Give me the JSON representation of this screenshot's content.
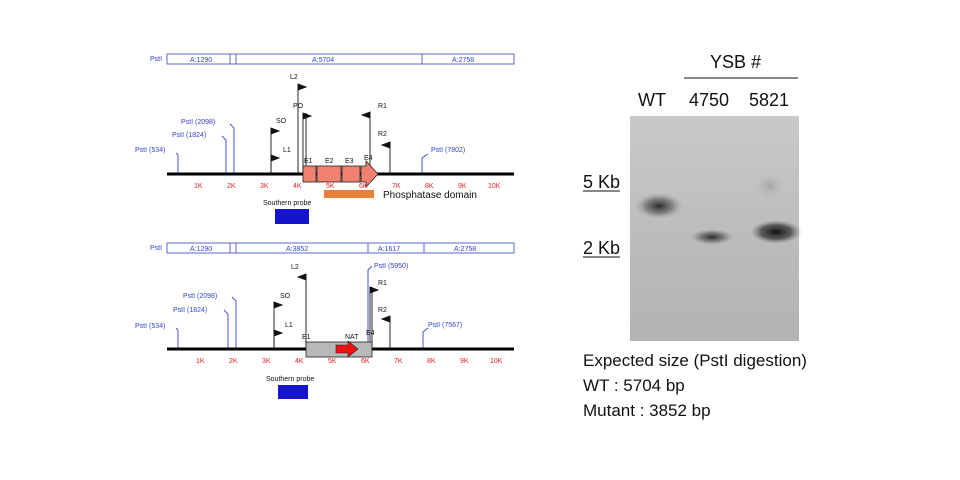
{
  "maps": [
    {
      "segments_prefix": "PstI",
      "segments": [
        "A:1290",
        "A:5704",
        "A:2758"
      ],
      "pst_sites": [
        "PstI (534)",
        "PstI (1824)",
        "PstI (2098)",
        "PstI (7802)"
      ],
      "primers": [
        "L2",
        "PO",
        "SO",
        "L1",
        "R1",
        "R2"
      ],
      "exons": [
        "E1",
        "E2",
        "E3",
        "E4"
      ],
      "ticks": [
        "1K",
        "2K",
        "3K",
        "4K",
        "5K",
        "6K",
        "7K",
        "8K",
        "9K",
        "10K"
      ],
      "domain_label": "Phosphatase domain",
      "probe_label": "Southern probe"
    },
    {
      "segments_prefix": "PstI",
      "segments": [
        "A:1290",
        "A:3852",
        "A:1617",
        "A:2758"
      ],
      "pst_sites": [
        "PstI (534)",
        "PstI (1824)",
        "PstI (2098)",
        "PstI (5950)",
        "PstI (7567)"
      ],
      "primers": [
        "L2",
        "SO",
        "L1",
        "R1",
        "R2"
      ],
      "exons": [
        "E1",
        "E4"
      ],
      "cassette": "NAT",
      "ticks": [
        "1K",
        "2K",
        "3K",
        "4K",
        "5K",
        "6K",
        "7K",
        "8K",
        "9K",
        "10K"
      ],
      "probe_label": "Southern probe"
    }
  ],
  "gel": {
    "group_label": "YSB #",
    "lanes": [
      "WT",
      "4750",
      "5821"
    ],
    "markers": [
      "5 Kb",
      "2 Kb"
    ]
  },
  "expected": {
    "title": "Expected size (PstI digestion)",
    "wt": "WT : 5704 bp",
    "mutant": "Mutant : 3852 bp"
  },
  "colors": {
    "exon": "#f08070",
    "domain": "#e8803a",
    "probe": "#1414cc",
    "cassette": "#b8b8b8",
    "nat_arrow": "#ee1111",
    "site_blue": "#3344cc",
    "tick_red": "#dd2222"
  }
}
